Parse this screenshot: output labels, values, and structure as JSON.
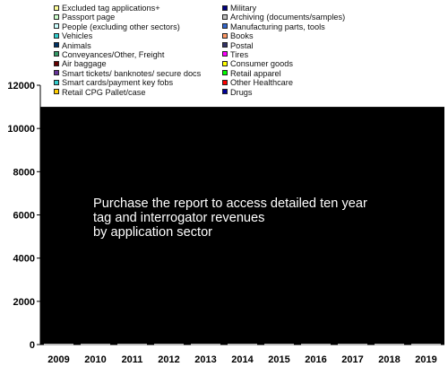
{
  "legend": {
    "left": [
      {
        "label": "Excluded tag applications+",
        "color": "#ffff99"
      },
      {
        "label": "Passport page",
        "color": "#ccffcc"
      },
      {
        "label": "People (excluding other sectors)",
        "color": "#ccffff"
      },
      {
        "label": "Vehicles",
        "color": "#33cccc"
      },
      {
        "label": "Animals",
        "color": "#003366"
      },
      {
        "label": "Conveyances/Other, Freight",
        "color": "#339966"
      },
      {
        "label": "Air baggage",
        "color": "#660000"
      },
      {
        "label": "Smart tickets/  banknotes/ secure docs",
        "color": "#663399"
      },
      {
        "label": "Smart cards/payment key fobs",
        "color": "#33cccc"
      },
      {
        "label": "Retail CPG Pallet/case",
        "color": "#ffcc00"
      }
    ],
    "right": [
      {
        "label": "Military",
        "color": "#000080"
      },
      {
        "label": "Archiving (documents/samples)",
        "color": "#c0c0c0"
      },
      {
        "label": "Manufacturing parts, tools",
        "color": "#3366cc"
      },
      {
        "label": "Books",
        "color": "#ff9966"
      },
      {
        "label": "Postal",
        "color": "#333366"
      },
      {
        "label": "Tires",
        "color": "#ff00ff"
      },
      {
        "label": "Consumer goods",
        "color": "#ffff00"
      },
      {
        "label": "Retail apparel",
        "color": "#00ff00"
      },
      {
        "label": "Other Healthcare",
        "color": "#ff0000"
      },
      {
        "label": "Drugs",
        "color": "#000099"
      }
    ]
  },
  "chart_data": {
    "type": "bar",
    "categories": [
      "2009",
      "2010",
      "2011",
      "2012",
      "2013",
      "2014",
      "2015",
      "2016",
      "2017",
      "2018",
      "2019"
    ],
    "yticks": [
      "0",
      "2000",
      "4000",
      "6000",
      "8000",
      "10000",
      "12000"
    ],
    "ylim": [
      0,
      12000
    ],
    "overlay_value": 11000,
    "overlay_color": "#000000",
    "grid": false,
    "legend_position": "top"
  },
  "overlay": {
    "line1": "Purchase the report to access detailed ten year",
    "line2": "tag and interrogator revenues",
    "line3": "by application sector"
  }
}
